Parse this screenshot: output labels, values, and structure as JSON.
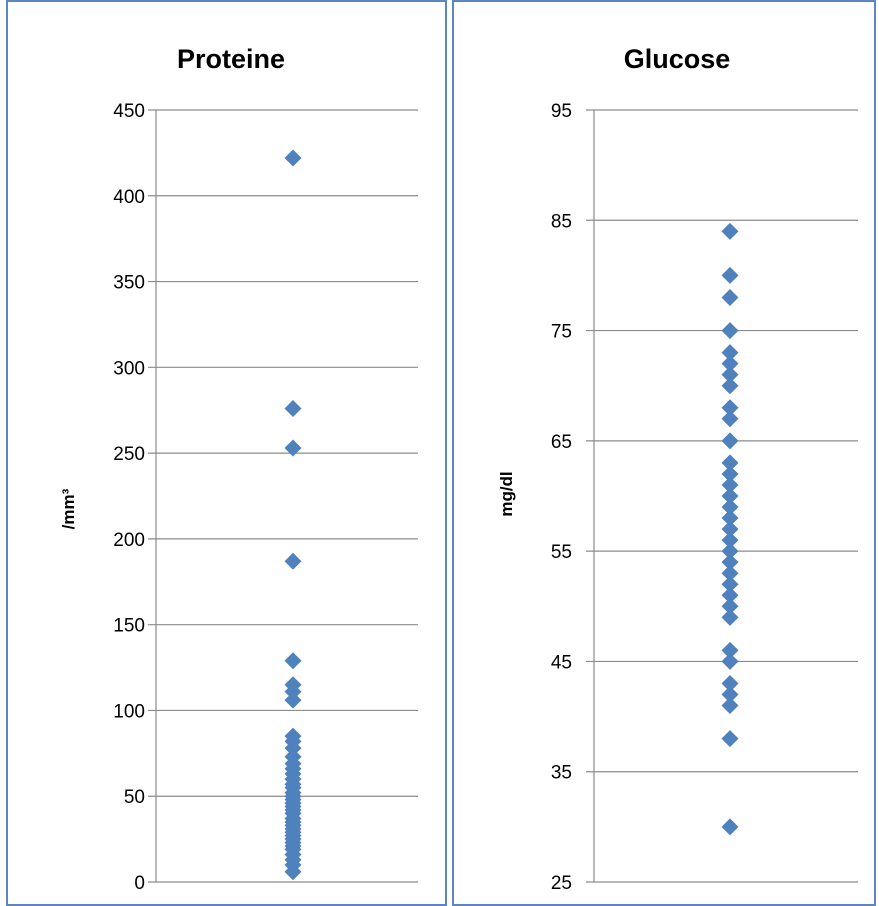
{
  "chart_data": [
    {
      "type": "scatter",
      "title": "Proteine",
      "xlabel": "",
      "ylabel": "/mm³",
      "ylim": [
        0,
        450
      ],
      "yticks": [
        0,
        50,
        100,
        150,
        200,
        250,
        300,
        350,
        400,
        450
      ],
      "grid": true,
      "marker_color": "#4f81bd",
      "x": [
        1
      ],
      "values": [
        422,
        276,
        253,
        187,
        129,
        115,
        111,
        106,
        85,
        82,
        78,
        73,
        69,
        66,
        63,
        60,
        57,
        55,
        52,
        50,
        48,
        46,
        44,
        42,
        40,
        37,
        35,
        33,
        31,
        29,
        27,
        25,
        23,
        21,
        19,
        16,
        13,
        10,
        6
      ]
    },
    {
      "type": "scatter",
      "title": "Glucose",
      "xlabel": "",
      "ylabel": "mg/dl",
      "ylim": [
        25,
        95
      ],
      "yticks": [
        25,
        35,
        45,
        55,
        65,
        75,
        85,
        95
      ],
      "grid": true,
      "marker_color": "#4f81bd",
      "x": [
        1
      ],
      "values": [
        84,
        80,
        78,
        75,
        73,
        72,
        71,
        70,
        68,
        67,
        65,
        63,
        62,
        61,
        60,
        59,
        58,
        57,
        56,
        55,
        54,
        53,
        52,
        51,
        50,
        49,
        46,
        45,
        43,
        42,
        41,
        38,
        30
      ]
    }
  ]
}
